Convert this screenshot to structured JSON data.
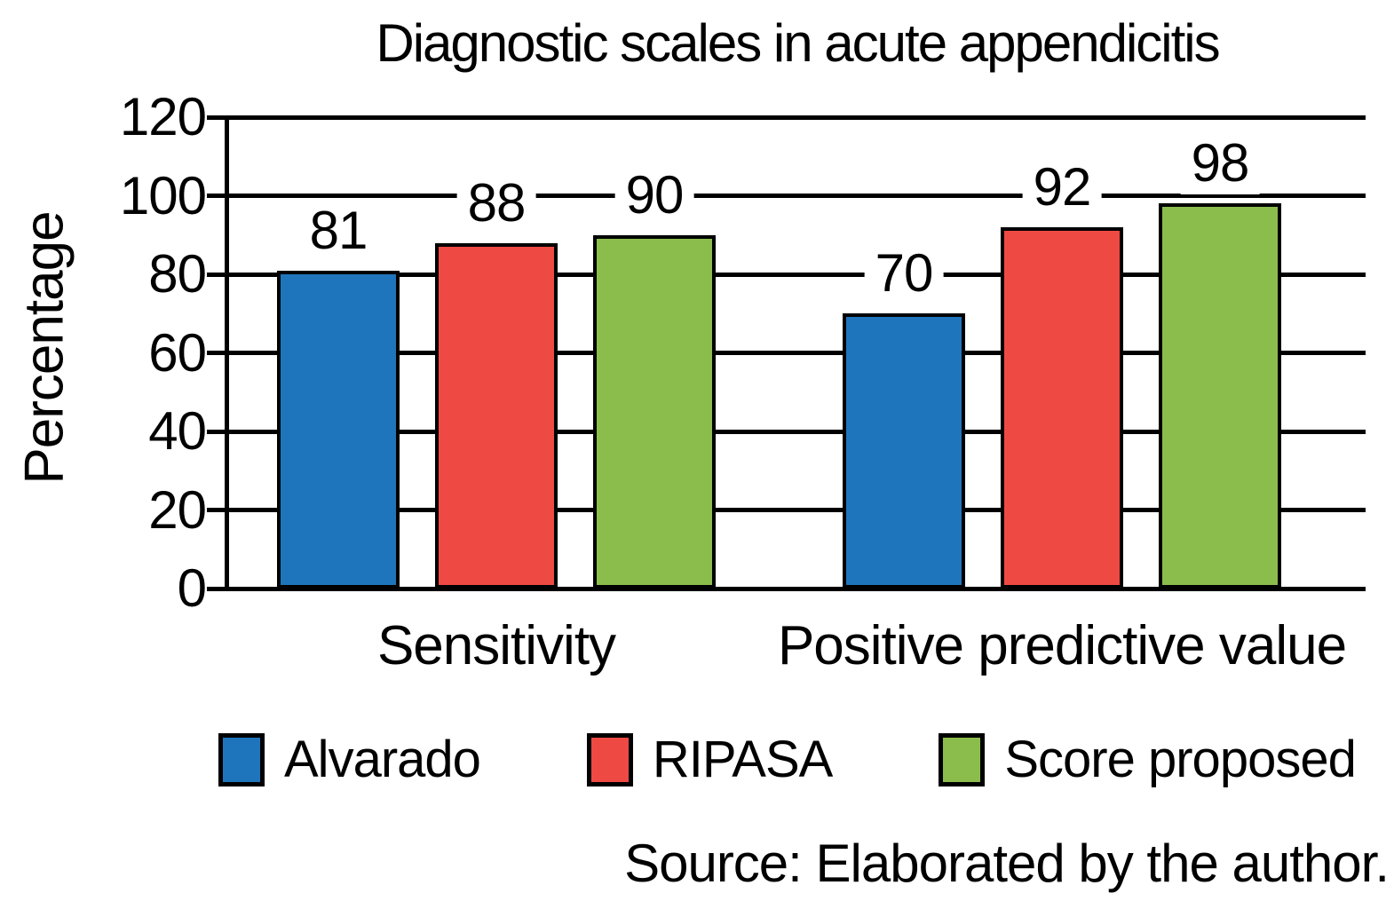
{
  "chart_data": {
    "type": "bar",
    "title": "Diagnostic scales in acute appendicitis",
    "xlabel": "",
    "ylabel": "Percentage",
    "ylim": [
      0,
      120
    ],
    "yticks": [
      0,
      20,
      40,
      60,
      80,
      100,
      120
    ],
    "grid": "horizontal",
    "bar_labels": true,
    "legend_position": "bottom",
    "categories": [
      "Sensitivity",
      "Positive predictive value"
    ],
    "series": [
      {
        "name": "Alvarado",
        "color": "#1F75BB",
        "values": [
          81,
          70
        ]
      },
      {
        "name": "RIPASA",
        "color": "#EF4944",
        "values": [
          88,
          92
        ]
      },
      {
        "name": "Score proposed",
        "color": "#8BBD4D",
        "values": [
          90,
          98
        ]
      }
    ]
  },
  "source_note": "Source: Elaborated by the author.",
  "colors": {
    "axis": "#000000",
    "text": "#000000",
    "background": "#ffffff"
  }
}
